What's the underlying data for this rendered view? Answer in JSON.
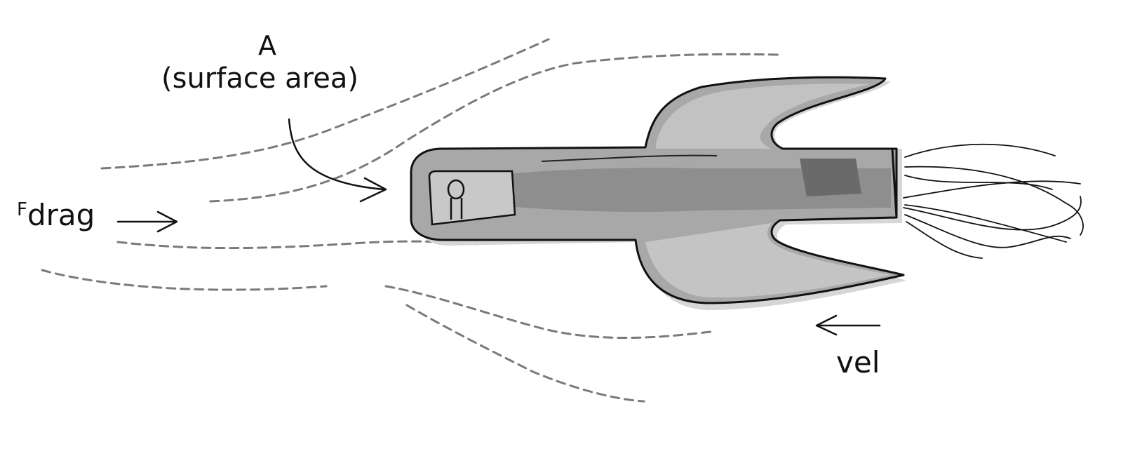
{
  "labels": {
    "area_letter": "A",
    "area_caption": "(surface area)",
    "drag_force_symbol": "F",
    "drag_force_subscript": "drag",
    "velocity": "vel"
  },
  "colors": {
    "ink": "#111111",
    "streamline": "#777777",
    "hull_light": "#b9b9b9",
    "hull_mid": "#9a9a9a",
    "hull_dark": "#6a6a6a",
    "window": "#c8c8c8"
  },
  "icons": [
    "streamline-dashes",
    "rocket-ship",
    "exhaust-flames",
    "arrow-right",
    "arrow-left",
    "curved-arrow"
  ]
}
